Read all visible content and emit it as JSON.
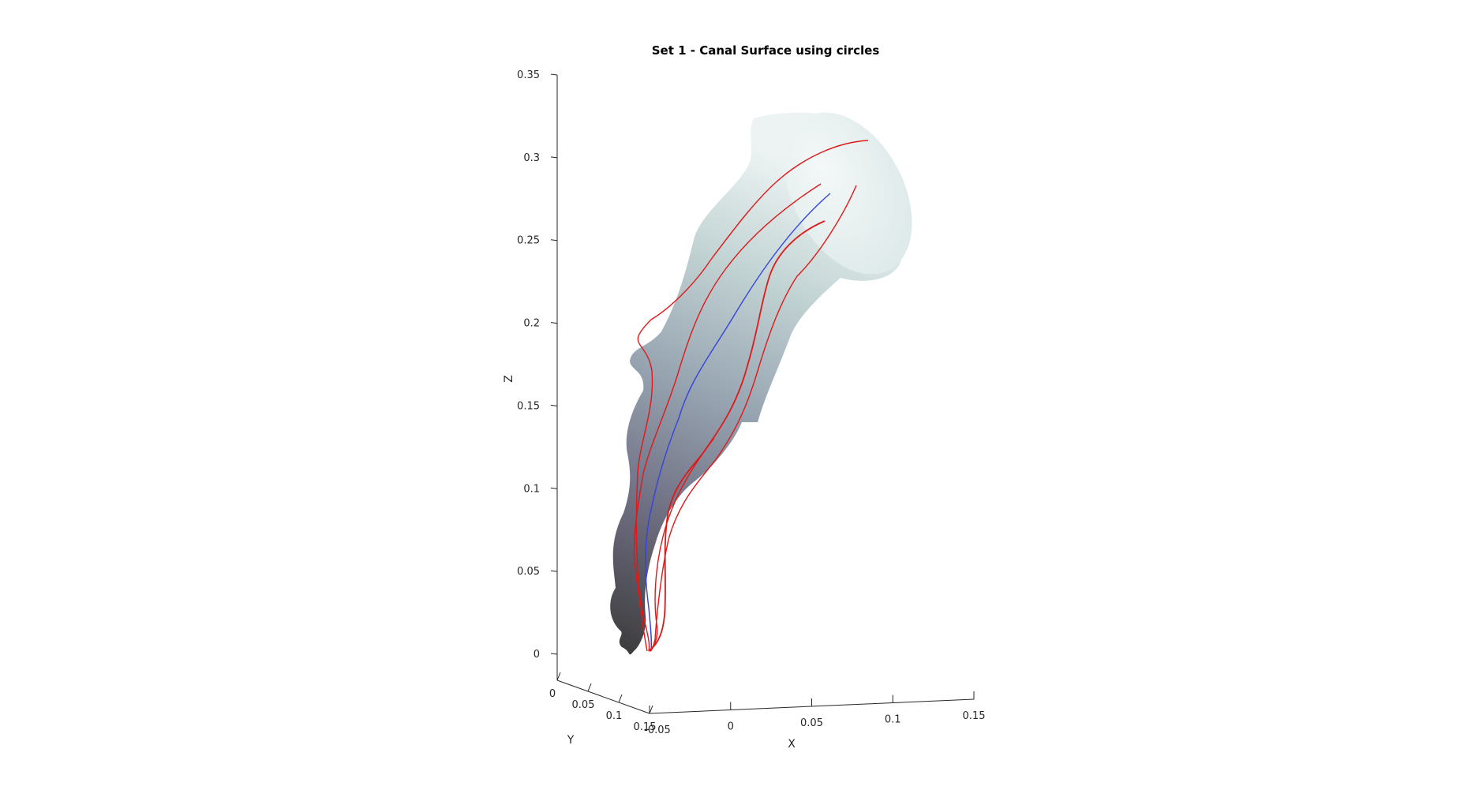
{
  "chart_data": {
    "type": "surface3d",
    "title": "Set 1 - Canal Surface using circles",
    "xlabel": "X",
    "ylabel": "Y",
    "zlabel": "Z",
    "x_ticks": [
      "-0.05",
      "0",
      "0.05",
      "0.1",
      "0.15"
    ],
    "y_ticks": [
      "0",
      "0.05",
      "0.1",
      "0.15"
    ],
    "z_ticks": [
      "0",
      "0.05",
      "0.1",
      "0.15",
      "0.2",
      "0.25",
      "0.3",
      "0.35"
    ],
    "xlim": [
      -0.05,
      0.15
    ],
    "ylim": [
      0,
      0.15
    ],
    "zlim": [
      0,
      0.35
    ],
    "grid": false,
    "surface_colormap": [
      "#3a3a3a",
      "#7a7a8c",
      "#b9c8c8",
      "#e8f0f0"
    ],
    "series": [
      {
        "role": "centerline",
        "color": "#3344dd"
      },
      {
        "role": "boundary-curve",
        "color": "#e01818"
      },
      {
        "role": "boundary-curve",
        "color": "#e01818"
      },
      {
        "role": "boundary-curve",
        "color": "#e01818"
      },
      {
        "role": "boundary-curve",
        "color": "#e01818"
      },
      {
        "role": "boundary-curve",
        "color": "#e01818"
      }
    ]
  }
}
